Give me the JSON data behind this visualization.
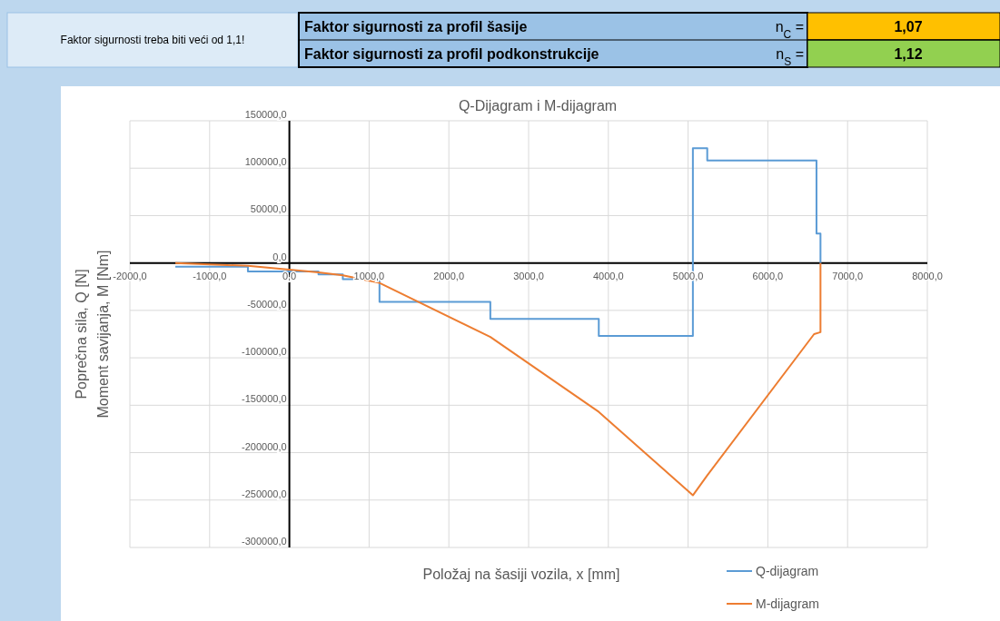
{
  "chart_data": {
    "type": "line",
    "title": "Q-Dijagram i M-dijagram",
    "xlabel": "Položaj na šasiji vozila, x [mm]",
    "ylabel": "Poprečna sila, Q [N]\nMoment savijanja, M [Nm]",
    "annotations": [
      "Faktor sigurnosti treba biti veći od 1,1!",
      "Faktor sigurnosti za profil šasije",
      "n$_{C}$ =",
      "1,07",
      "Faktor sigurnosti za profil podkonstrukcije",
      "n$_{S}$ =",
      "1,12"
    ],
    "xlim": [
      -2000,
      8000
    ],
    "xticks": [
      {
        "value": -2000,
        "label": "-2000,0"
      },
      {
        "value": -1000,
        "label": "-1000,0"
      },
      {
        "value": 0,
        "label": "0,0"
      },
      {
        "value": 1000,
        "label": "1000,0"
      },
      {
        "value": 2000,
        "label": "2000,0"
      },
      {
        "value": 3000,
        "label": "3000,0"
      },
      {
        "value": 4000,
        "label": "4000,0"
      },
      {
        "value": 5000,
        "label": "5000,0"
      },
      {
        "value": 6000,
        "label": "6000,0"
      },
      {
        "value": 7000,
        "label": "7000,0"
      },
      {
        "value": 8000,
        "label": "8000,0"
      }
    ],
    "ylim": [
      -300000,
      150000
    ],
    "yticks": [
      {
        "value": -300000,
        "label": "-300000,0"
      },
      {
        "value": -250000,
        "label": "-250000,0"
      },
      {
        "value": -200000,
        "label": "-200000,0"
      },
      {
        "value": -150000,
        "label": "-150000,0"
      },
      {
        "value": -100000,
        "label": "-100000,0"
      },
      {
        "value": -50000,
        "label": "-50000,0"
      },
      {
        "value": 0,
        "label": "0,0"
      },
      {
        "value": 50000,
        "label": "50000,0"
      },
      {
        "value": 100000,
        "label": "100000,0"
      },
      {
        "value": 150000,
        "label": "150000,0"
      }
    ],
    "grid": true,
    "legend": "bottom right",
    "series": [
      {
        "name": "Q-dijagram",
        "color": "#5b9bd5",
        "x": [
          -1430,
          -520,
          -520,
          365,
          365,
          670,
          670,
          1130,
          1130,
          2520,
          2520,
          3880,
          3880,
          5060,
          5060,
          5240,
          5240,
          6610,
          6610,
          6660,
          6660
        ],
        "values": [
          -4000,
          -4000,
          -9000,
          -9000,
          -12000,
          -12000,
          -17000,
          -17000,
          -41000,
          -41000,
          -59000,
          -59000,
          -77000,
          -77000,
          121000,
          121000,
          108000,
          108000,
          31000,
          31000,
          0
        ]
      },
      {
        "name": "M-dijagram",
        "color": "#ed7d31",
        "x": [
          -1430,
          -520,
          0,
          365,
          670,
          1130,
          2520,
          3880,
          5060,
          5240,
          6580,
          6660,
          6660
        ],
        "values": [
          0,
          -3000,
          -7000,
          -10000,
          -13000,
          -21000,
          -78000,
          -157000,
          -245000,
          -224000,
          -75000,
          -73000,
          0
        ]
      }
    ]
  }
}
